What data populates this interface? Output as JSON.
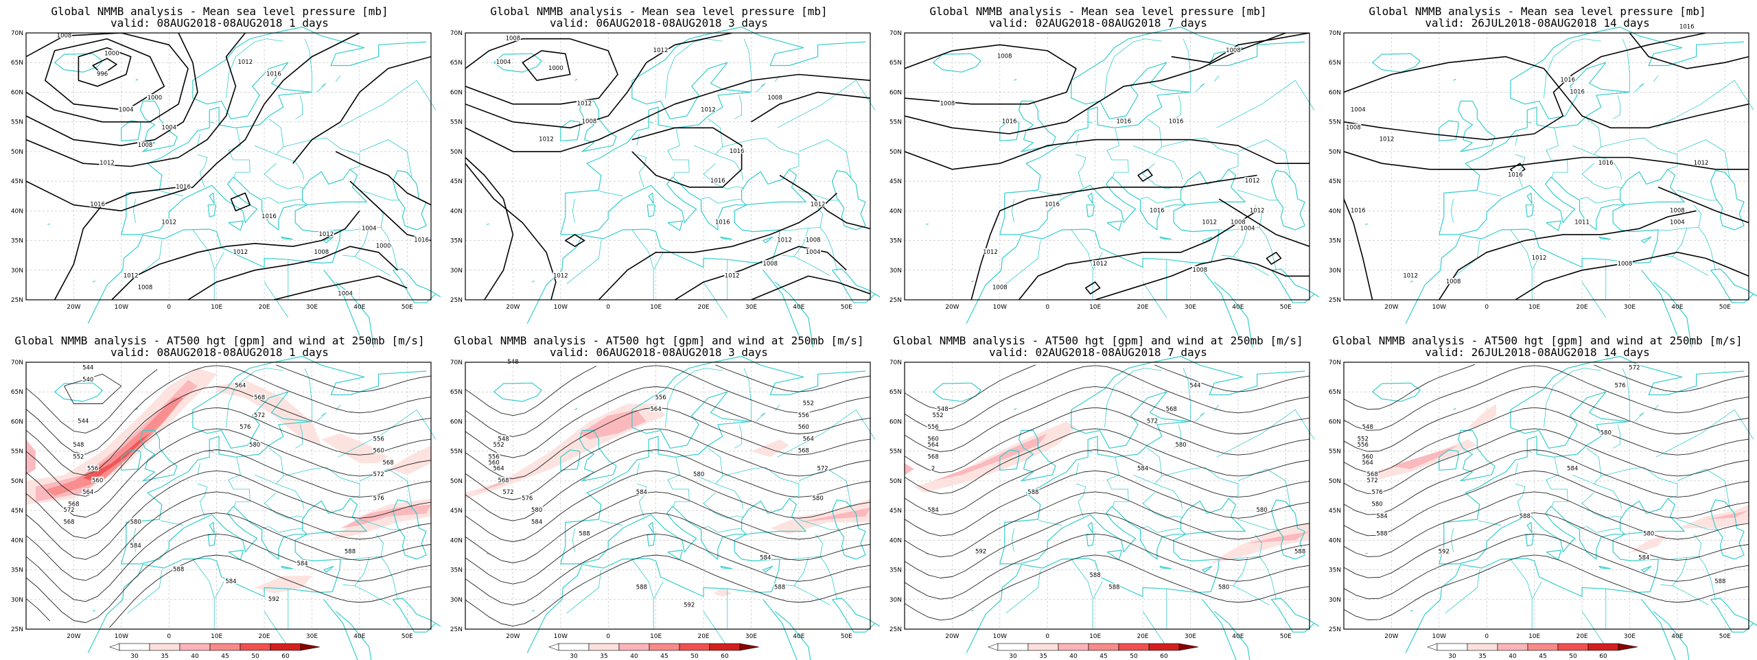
{
  "colors": {
    "coast": "#33cccc",
    "isobar": "#000000",
    "contour": "#222222",
    "grid": "#bbbbbb",
    "wind": [
      "#fde0dd",
      "#fbb4b9",
      "#f88a8a",
      "#ef5050",
      "#d41f1f",
      "#8b0000"
    ]
  },
  "top_titles": [
    {
      "line1": "Global NMMB analysis - Mean sea level pressure [mb]",
      "line2": "valid: 08AUG2018-08AUG2018   1 days"
    },
    {
      "line1": "Global NMMB analysis - Mean sea level pressure [mb]",
      "line2": "valid: 06AUG2018-08AUG2018   3 days"
    },
    {
      "line1": "Global NMMB analysis - Mean sea level pressure [mb]",
      "line2": "valid: 02AUG2018-08AUG2018   7 days"
    },
    {
      "line1": "Global NMMB analysis - Mean sea level pressure [mb]",
      "line2": "valid: 26JUL2018-08AUG2018  14 days"
    }
  ],
  "bottom_titles": [
    {
      "line1": "Global NMMB analysis - AT500 hgt [gpm] and wind at 250mb [m/s]",
      "line2": "valid: 08AUG2018-08AUG2018   1 days"
    },
    {
      "line1": "Global NMMB analysis - AT500 hgt [gpm] and wind at 250mb [m/s]",
      "line2": "valid: 06AUG2018-08AUG2018   3 days"
    },
    {
      "line1": "Global NMMB analysis - AT500 hgt [gpm] and wind at 250mb [m/s]",
      "line2": "valid: 02AUG2018-08AUG2018   7 days"
    },
    {
      "line1": "Global NMMB analysis - AT500 hgt [gpm] and wind at 250mb [m/s]",
      "line2": "valid: 26JUL2018-08AUG2018  14 days"
    }
  ],
  "lat_labels": [
    "70N",
    "65N",
    "60N",
    "55N",
    "50N",
    "45N",
    "40N",
    "35N",
    "30N",
    "25N"
  ],
  "lon_labels": [
    "20W",
    "10W",
    "0",
    "10E",
    "20E",
    "30E",
    "40E",
    "50E"
  ],
  "colorbar_labels": [
    "30",
    "35",
    "40",
    "45",
    "50",
    "60"
  ],
  "mslp_labels": [
    [
      {
        "t": "1008",
        "lon": -22,
        "lat": 69.5
      },
      {
        "t": "1000",
        "lon": -12,
        "lat": 66.5
      },
      {
        "t": "996",
        "lon": -14,
        "lat": 63
      },
      {
        "t": "1012",
        "lon": 16,
        "lat": 65
      },
      {
        "t": "1016",
        "lon": 22,
        "lat": 63
      },
      {
        "t": "1000",
        "lon": -3,
        "lat": 59
      },
      {
        "t": "1004",
        "lon": -9,
        "lat": 57
      },
      {
        "t": "1004",
        "lon": 0,
        "lat": 54
      },
      {
        "t": "1008",
        "lon": -5,
        "lat": 51
      },
      {
        "t": "1012",
        "lon": -13,
        "lat": 48
      },
      {
        "t": "1016",
        "lon": 3,
        "lat": 44
      },
      {
        "t": "1016",
        "lon": -15,
        "lat": 41
      },
      {
        "t": "1012",
        "lon": 0,
        "lat": 38
      },
      {
        "t": "1016",
        "lon": 21,
        "lat": 39
      },
      {
        "t": "1012",
        "lon": 15,
        "lat": 33
      },
      {
        "t": "1012",
        "lon": 33,
        "lat": 36
      },
      {
        "t": "1008",
        "lon": 32,
        "lat": 33
      },
      {
        "t": "1004",
        "lon": 42,
        "lat": 37
      },
      {
        "t": "1000",
        "lon": 45,
        "lat": 34
      },
      {
        "t": "1016",
        "lon": 53,
        "lat": 35
      },
      {
        "t": "1012",
        "lon": -8,
        "lat": 29
      },
      {
        "t": "1008",
        "lon": -5,
        "lat": 27
      },
      {
        "t": "1004",
        "lon": 37,
        "lat": 26
      }
    ],
    [
      {
        "t": "1008",
        "lon": -20,
        "lat": 69
      },
      {
        "t": "1004",
        "lon": -22,
        "lat": 65
      },
      {
        "t": "1000",
        "lon": -11,
        "lat": 64
      },
      {
        "t": "1012",
        "lon": 11,
        "lat": 67
      },
      {
        "t": "1012",
        "lon": -5,
        "lat": 58
      },
      {
        "t": "1008",
        "lon": -4,
        "lat": 55
      },
      {
        "t": "1012",
        "lon": -13,
        "lat": 52
      },
      {
        "t": "1012",
        "lon": 21,
        "lat": 57
      },
      {
        "t": "1008",
        "lon": 35,
        "lat": 59
      },
      {
        "t": "1016",
        "lon": 27,
        "lat": 50
      },
      {
        "t": "1016",
        "lon": 23,
        "lat": 45
      },
      {
        "t": "1016",
        "lon": 24,
        "lat": 38
      },
      {
        "t": "1012",
        "lon": 44,
        "lat": 41
      },
      {
        "t": "1012",
        "lon": 37,
        "lat": 35
      },
      {
        "t": "1008",
        "lon": 43,
        "lat": 35
      },
      {
        "t": "1004",
        "lon": 43,
        "lat": 33
      },
      {
        "t": "1008",
        "lon": 34,
        "lat": 31
      },
      {
        "t": "1012",
        "lon": -10,
        "lat": 29
      },
      {
        "t": "1012",
        "lon": 26,
        "lat": 29
      }
    ],
    [
      {
        "t": "1008",
        "lon": -9,
        "lat": 66
      },
      {
        "t": "1008",
        "lon": -21,
        "lat": 58
      },
      {
        "t": "1016",
        "lon": -8,
        "lat": 55
      },
      {
        "t": "1016",
        "lon": 16,
        "lat": 55
      },
      {
        "t": "1016",
        "lon": 27,
        "lat": 55
      },
      {
        "t": "1008",
        "lon": 39,
        "lat": 67
      },
      {
        "t": "1012",
        "lon": 43,
        "lat": 45
      },
      {
        "t": "1016",
        "lon": 1,
        "lat": 41
      },
      {
        "t": "1016",
        "lon": 23,
        "lat": 40
      },
      {
        "t": "1012",
        "lon": 34,
        "lat": 38
      },
      {
        "t": "1008",
        "lon": 40,
        "lat": 38
      },
      {
        "t": "1004",
        "lon": 42,
        "lat": 37
      },
      {
        "t": "1012",
        "lon": 44,
        "lat": 40
      },
      {
        "t": "1012",
        "lon": -12,
        "lat": 33
      },
      {
        "t": "1012",
        "lon": 11,
        "lat": 31
      },
      {
        "t": "1008",
        "lon": 32,
        "lat": 30
      },
      {
        "t": "1008",
        "lon": -10,
        "lat": 27
      }
    ],
    [
      {
        "t": "1016",
        "lon": 42,
        "lat": 71
      },
      {
        "t": "1016",
        "lon": 17,
        "lat": 62
      },
      {
        "t": "1016",
        "lon": 19,
        "lat": 60
      },
      {
        "t": "1004",
        "lon": -27,
        "lat": 57
      },
      {
        "t": "1008",
        "lon": -28,
        "lat": 54
      },
      {
        "t": "1012",
        "lon": -21,
        "lat": 52
      },
      {
        "t": "1012",
        "lon": 45,
        "lat": 48
      },
      {
        "t": "1016",
        "lon": 25,
        "lat": 48
      },
      {
        "t": "1016",
        "lon": 6,
        "lat": 46
      },
      {
        "t": "1016",
        "lon": -27,
        "lat": 40
      },
      {
        "t": "1008",
        "lon": 40,
        "lat": 40
      },
      {
        "t": "1004",
        "lon": 40,
        "lat": 38
      },
      {
        "t": "1011",
        "lon": 20,
        "lat": 38
      },
      {
        "t": "1012",
        "lon": 11,
        "lat": 32
      },
      {
        "t": "1008",
        "lon": 29,
        "lat": 31
      },
      {
        "t": "1012",
        "lon": -16,
        "lat": 29
      },
      {
        "t": "1008",
        "lon": -7,
        "lat": 28
      }
    ]
  ],
  "z500_labels": [
    [
      {
        "t": "544",
        "lon": -17,
        "lat": 69
      },
      {
        "t": "540",
        "lon": -17,
        "lat": 67
      },
      {
        "t": "544",
        "lon": -18,
        "lat": 60
      },
      {
        "t": "548",
        "lon": -19,
        "lat": 56
      },
      {
        "t": "552",
        "lon": -19,
        "lat": 54
      },
      {
        "t": "556",
        "lon": -16,
        "lat": 52
      },
      {
        "t": "560",
        "lon": -15,
        "lat": 50
      },
      {
        "t": "564",
        "lon": -17,
        "lat": 48
      },
      {
        "t": "568",
        "lon": -20,
        "lat": 46
      },
      {
        "t": "572",
        "lon": -21,
        "lat": 45
      },
      {
        "t": "568",
        "lon": -21,
        "lat": 43
      },
      {
        "t": "564",
        "lon": 15,
        "lat": 66
      },
      {
        "t": "568",
        "lon": 19,
        "lat": 64
      },
      {
        "t": "572",
        "lon": 19,
        "lat": 61
      },
      {
        "t": "576",
        "lon": 16,
        "lat": 59
      },
      {
        "t": "580",
        "lon": 18,
        "lat": 56
      },
      {
        "t": "580",
        "lon": -7,
        "lat": 43
      },
      {
        "t": "584",
        "lon": -7,
        "lat": 39
      },
      {
        "t": "588",
        "lon": 2,
        "lat": 35
      },
      {
        "t": "584",
        "lon": 13,
        "lat": 33
      },
      {
        "t": "592",
        "lon": 22,
        "lat": 30
      },
      {
        "t": "584",
        "lon": 28,
        "lat": 36
      },
      {
        "t": "588",
        "lon": 38,
        "lat": 38
      },
      {
        "t": "556",
        "lon": 44,
        "lat": 57
      },
      {
        "t": "560",
        "lon": 44,
        "lat": 55
      },
      {
        "t": "568",
        "lon": 46,
        "lat": 53
      },
      {
        "t": "572",
        "lon": 44,
        "lat": 51
      },
      {
        "t": "576",
        "lon": 44,
        "lat": 47
      }
    ],
    [
      {
        "t": "548",
        "lon": -20,
        "lat": 70
      },
      {
        "t": "548",
        "lon": -22,
        "lat": 57
      },
      {
        "t": "552",
        "lon": -23,
        "lat": 56
      },
      {
        "t": "556",
        "lon": -24,
        "lat": 54
      },
      {
        "t": "560",
        "lon": -24,
        "lat": 53
      },
      {
        "t": "564",
        "lon": -23,
        "lat": 52
      },
      {
        "t": "568",
        "lon": -22,
        "lat": 50
      },
      {
        "t": "572",
        "lon": -21,
        "lat": 48
      },
      {
        "t": "576",
        "lon": -17,
        "lat": 47
      },
      {
        "t": "580",
        "lon": -15,
        "lat": 45
      },
      {
        "t": "584",
        "lon": -15,
        "lat": 43
      },
      {
        "t": "556",
        "lon": 11,
        "lat": 64
      },
      {
        "t": "564",
        "lon": 10,
        "lat": 62
      },
      {
        "t": "552",
        "lon": 42,
        "lat": 63
      },
      {
        "t": "556",
        "lon": 41,
        "lat": 61
      },
      {
        "t": "560",
        "lon": 41,
        "lat": 59
      },
      {
        "t": "564",
        "lon": 42,
        "lat": 57
      },
      {
        "t": "568",
        "lon": 41,
        "lat": 55
      },
      {
        "t": "572",
        "lon": 45,
        "lat": 52
      },
      {
        "t": "580",
        "lon": 19,
        "lat": 51
      },
      {
        "t": "584",
        "lon": 7,
        "lat": 48
      },
      {
        "t": "580",
        "lon": 44,
        "lat": 47
      },
      {
        "t": "588",
        "lon": -5,
        "lat": 41
      },
      {
        "t": "584",
        "lon": 33,
        "lat": 37
      },
      {
        "t": "588",
        "lon": 7,
        "lat": 32
      },
      {
        "t": "588",
        "lon": 36,
        "lat": 32
      },
      {
        "t": "592",
        "lon": 17,
        "lat": 29
      }
    ],
    [
      {
        "t": "548",
        "lon": -22,
        "lat": 62
      },
      {
        "t": "552",
        "lon": -23,
        "lat": 61
      },
      {
        "t": "556",
        "lon": -24,
        "lat": 59
      },
      {
        "t": "560",
        "lon": -24,
        "lat": 57
      },
      {
        "t": "564",
        "lon": -24,
        "lat": 56
      },
      {
        "t": "568",
        "lon": -24,
        "lat": 54
      },
      {
        "t": "2",
        "lon": -24,
        "lat": 52
      },
      {
        "t": "544",
        "lon": 31,
        "lat": 66
      },
      {
        "t": "568",
        "lon": 26,
        "lat": 62
      },
      {
        "t": "572",
        "lon": 22,
        "lat": 60
      },
      {
        "t": "580",
        "lon": 28,
        "lat": 56
      },
      {
        "t": "584",
        "lon": 20,
        "lat": 52
      },
      {
        "t": "588",
        "lon": -3,
        "lat": 48
      },
      {
        "t": "584",
        "lon": -24,
        "lat": 45
      },
      {
        "t": "592",
        "lon": -14,
        "lat": 38
      },
      {
        "t": "588",
        "lon": 10,
        "lat": 34
      },
      {
        "t": "580",
        "lon": 45,
        "lat": 45
      },
      {
        "t": "588",
        "lon": 53,
        "lat": 38
      },
      {
        "t": "580",
        "lon": 37,
        "lat": 32
      },
      {
        "t": "588",
        "lon": 14,
        "lat": 32
      }
    ],
    [
      {
        "t": "572",
        "lon": 31,
        "lat": 69
      },
      {
        "t": "576",
        "lon": 28,
        "lat": 66
      },
      {
        "t": "548",
        "lon": -25,
        "lat": 59
      },
      {
        "t": "552",
        "lon": -26,
        "lat": 57
      },
      {
        "t": "556",
        "lon": -26,
        "lat": 56
      },
      {
        "t": "560",
        "lon": -25,
        "lat": 54
      },
      {
        "t": "564",
        "lon": -25,
        "lat": 53
      },
      {
        "t": "568",
        "lon": -24,
        "lat": 51
      },
      {
        "t": "572",
        "lon": -24,
        "lat": 50
      },
      {
        "t": "576",
        "lon": -23,
        "lat": 48
      },
      {
        "t": "580",
        "lon": -23,
        "lat": 46
      },
      {
        "t": "584",
        "lon": -22,
        "lat": 44
      },
      {
        "t": "588",
        "lon": -22,
        "lat": 41
      },
      {
        "t": "580",
        "lon": 25,
        "lat": 58
      },
      {
        "t": "584",
        "lon": 18,
        "lat": 52
      },
      {
        "t": "588",
        "lon": 8,
        "lat": 44
      },
      {
        "t": "592",
        "lon": -9,
        "lat": 38
      },
      {
        "t": "580",
        "lon": 34,
        "lat": 41
      },
      {
        "t": "584",
        "lon": 33,
        "lat": 37
      },
      {
        "t": "588",
        "lon": 49,
        "lat": 33
      }
    ]
  ]
}
